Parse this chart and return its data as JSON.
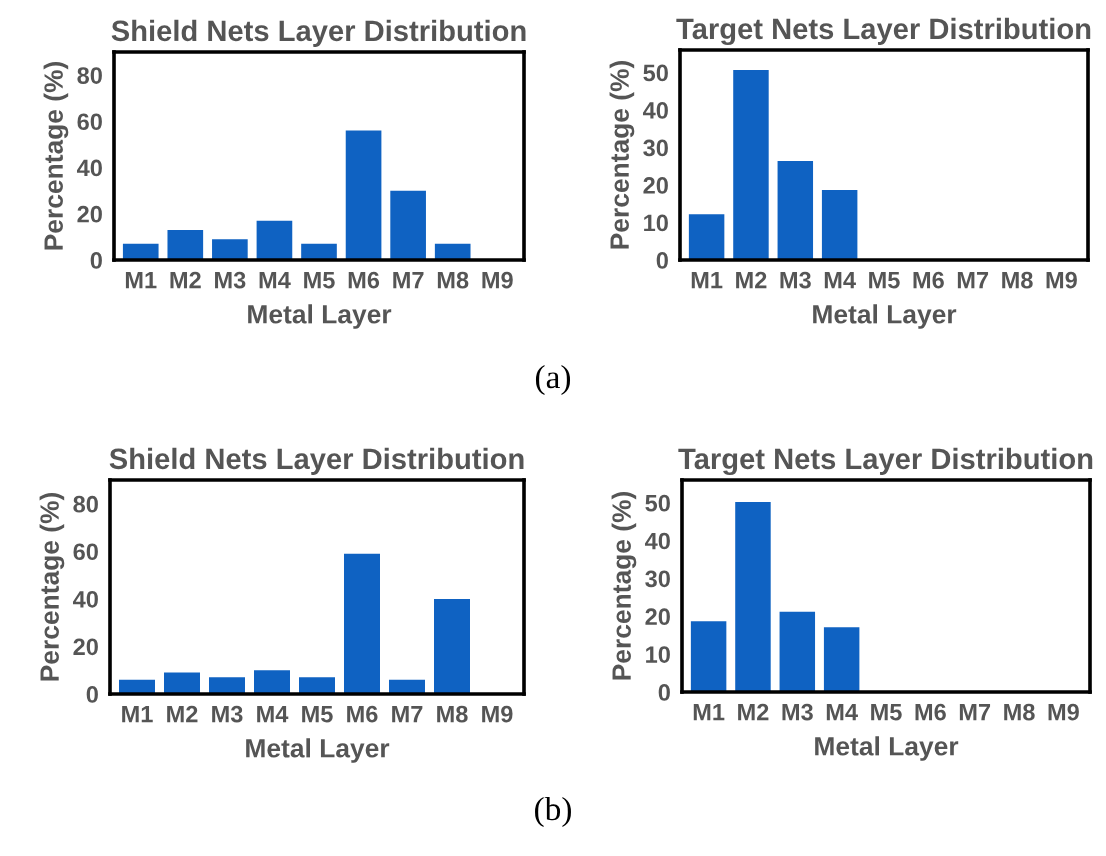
{
  "chart_data": [
    {
      "type": "bar",
      "title": "Shield Nets Layer Distribution",
      "xlabel": "Metal Layer",
      "ylabel": "Percentage (%)",
      "categories": [
        "M1",
        "M2",
        "M3",
        "M4",
        "M5",
        "M6",
        "M7",
        "M8",
        "M9"
      ],
      "values": [
        7,
        13,
        9,
        17,
        7,
        56,
        30,
        7,
        0
      ],
      "color": "#0f62c2",
      "ylim": [
        0,
        90
      ],
      "yticks": [
        0,
        20,
        40,
        60,
        80
      ],
      "grid": false,
      "legend": false
    },
    {
      "type": "bar",
      "title": "Target Nets Layer Distribution",
      "xlabel": "Metal Layer",
      "ylabel": "Percentage (%)",
      "categories": [
        "M1",
        "M2",
        "M3",
        "M4",
        "M5",
        "M6",
        "M7",
        "M8",
        "M9"
      ],
      "values": [
        12.2,
        50.7,
        26.4,
        18.7,
        0,
        0,
        0,
        0,
        0
      ],
      "color": "#0f62c2",
      "ylim": [
        0,
        56
      ],
      "yticks": [
        0,
        10,
        20,
        30,
        40,
        50
      ],
      "grid": false,
      "legend": false,
      "annotations": [
        "(a)"
      ]
    },
    {
      "type": "bar",
      "title": "Shield Nets Layer Distribution",
      "xlabel": "Metal Layer",
      "ylabel": "Percentage (%)",
      "categories": [
        "M1",
        "M2",
        "M3",
        "M4",
        "M5",
        "M6",
        "M7",
        "M8",
        "M9"
      ],
      "values": [
        6,
        9,
        7,
        10,
        7,
        59,
        6,
        40,
        0
      ],
      "color": "#0f62c2",
      "ylim": [
        0,
        90
      ],
      "yticks": [
        0,
        20,
        40,
        60,
        80
      ],
      "grid": false,
      "legend": false
    },
    {
      "type": "bar",
      "title": "Target Nets Layer Distribution",
      "xlabel": "Metal Layer",
      "ylabel": "Percentage (%)",
      "categories": [
        "M1",
        "M2",
        "M3",
        "M4",
        "M5",
        "M6",
        "M7",
        "M8",
        "M9"
      ],
      "values": [
        18.7,
        50.2,
        21.2,
        17.1,
        0,
        0,
        0,
        0,
        0
      ],
      "color": "#0f62c2",
      "ylim": [
        0,
        56
      ],
      "yticks": [
        0,
        10,
        20,
        30,
        40,
        50
      ],
      "grid": false,
      "legend": false,
      "annotations": [
        "(b)"
      ]
    }
  ]
}
